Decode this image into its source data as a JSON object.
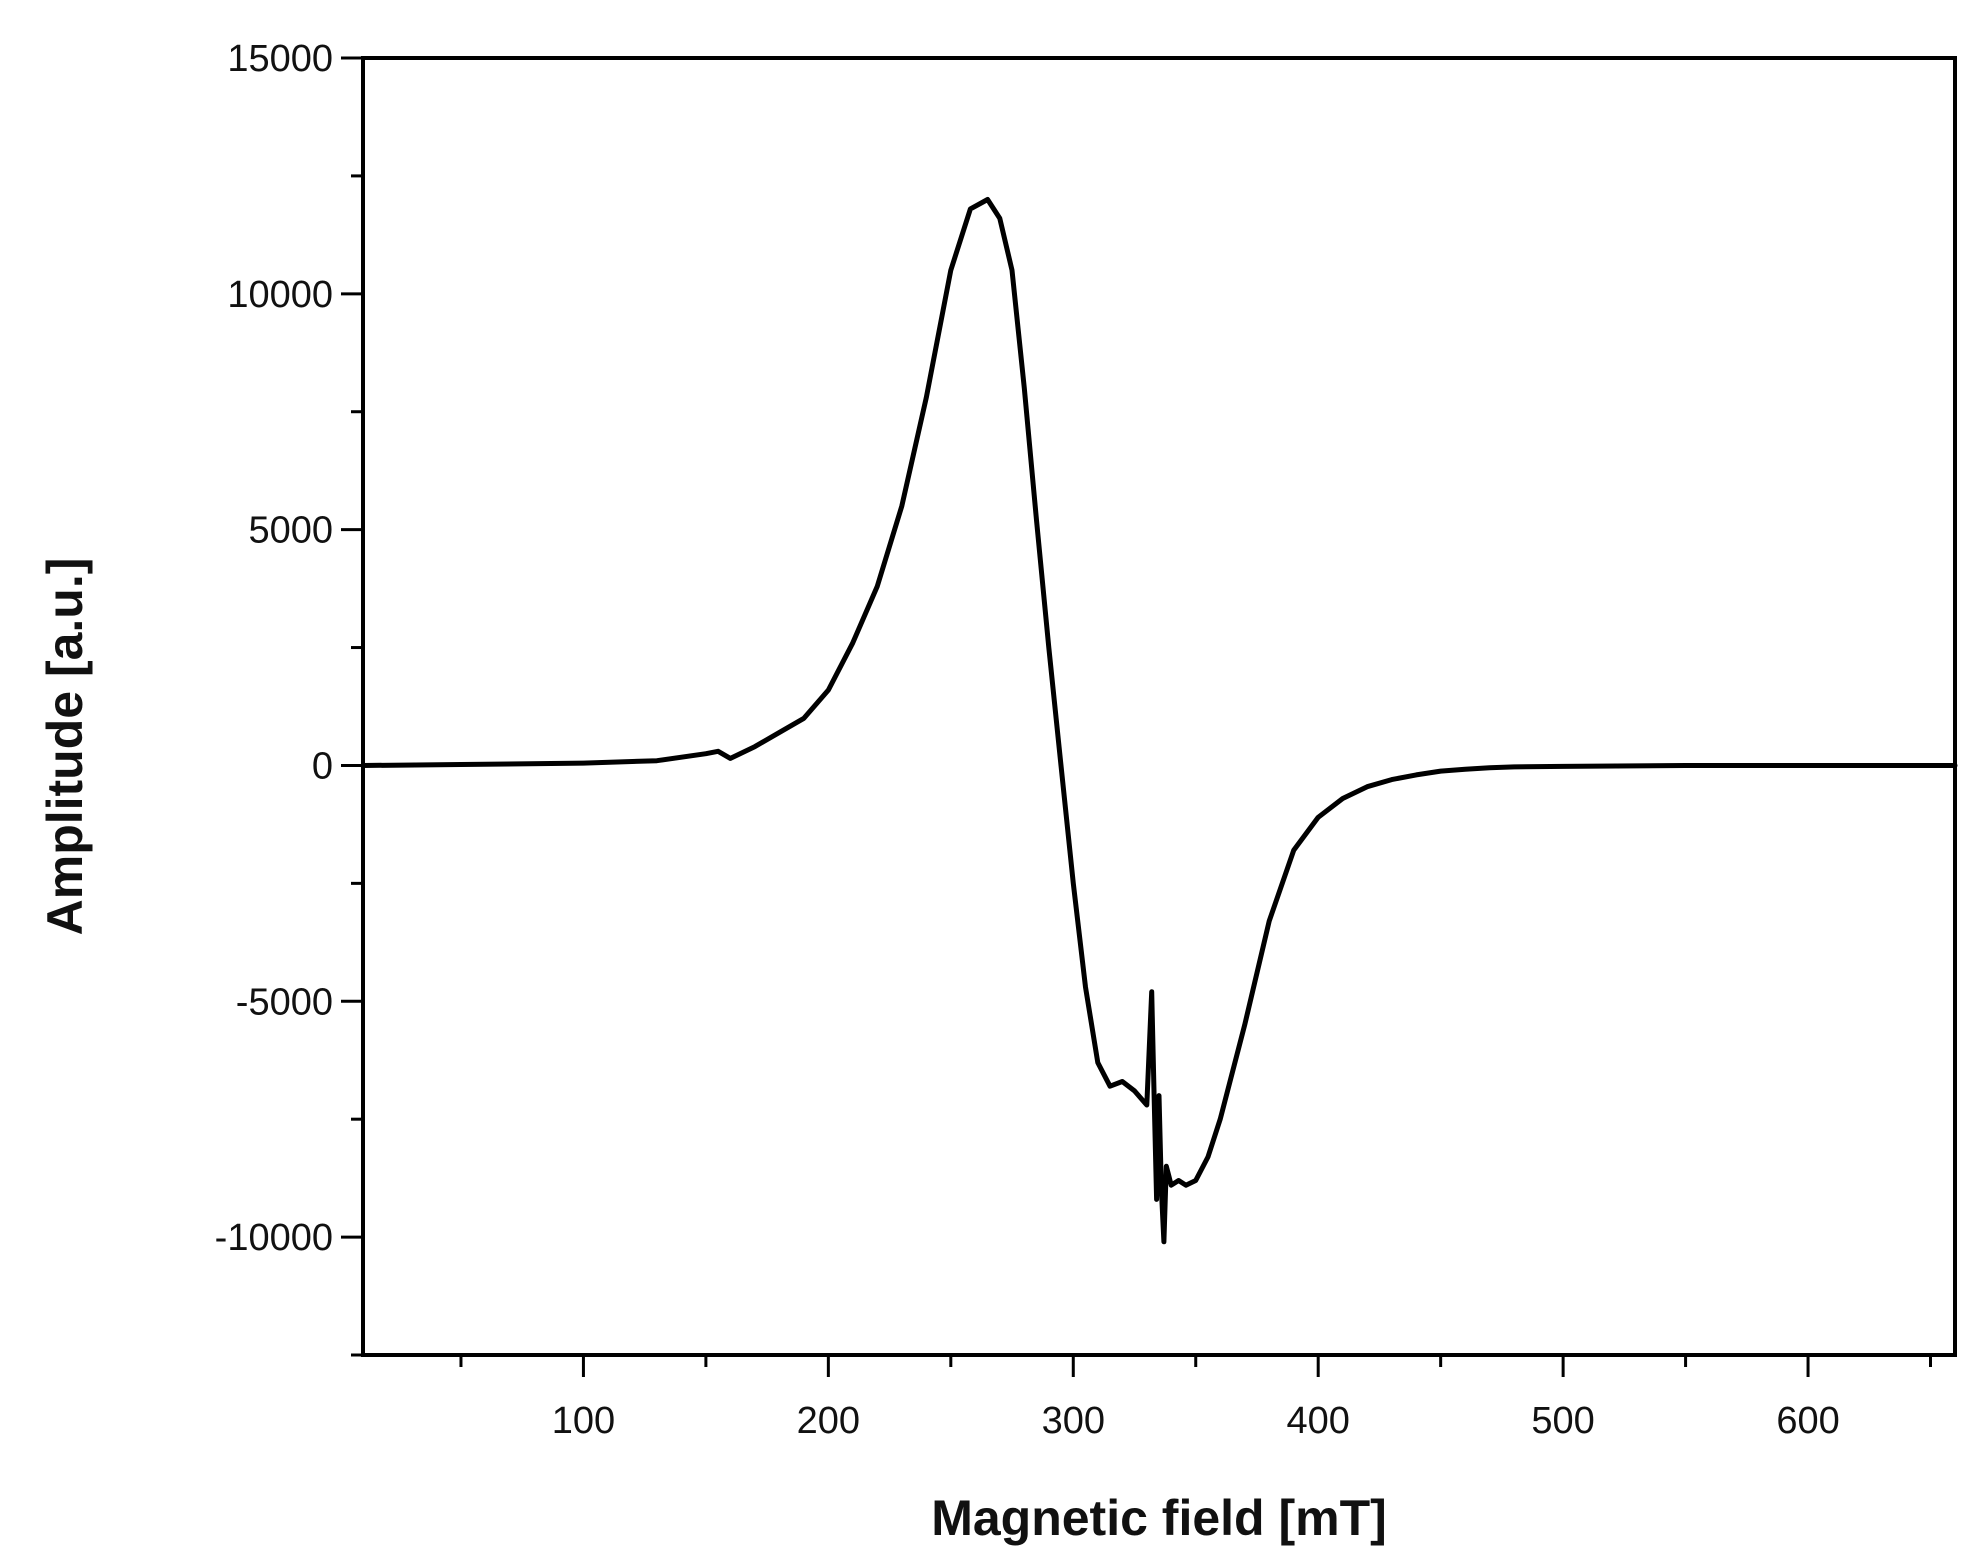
{
  "chart_data": {
    "type": "line",
    "title": "",
    "xlabel": "Magnetic field [mT]",
    "ylabel": "Amplitude [a.u.]",
    "xlim": [
      10,
      660
    ],
    "ylim": [
      -12500,
      15000
    ],
    "xticks": [
      {
        "value": 100,
        "label": "100"
      },
      {
        "value": 200,
        "label": "200"
      },
      {
        "value": 300,
        "label": "300"
      },
      {
        "value": 400,
        "label": "400"
      },
      {
        "value": 500,
        "label": "500"
      },
      {
        "value": 600,
        "label": "600"
      }
    ],
    "xminor": [
      50,
      150,
      250,
      350,
      450,
      550,
      650
    ],
    "yticks": [
      {
        "value": 15000,
        "label": "15000"
      },
      {
        "value": 10000,
        "label": "10000"
      },
      {
        "value": 5000,
        "label": "5000"
      },
      {
        "value": 0,
        "label": "0"
      },
      {
        "value": -5000,
        "label": "-5000"
      },
      {
        "value": -10000,
        "label": "-10000"
      }
    ],
    "yminor": [
      12500,
      7500,
      2500,
      -2500,
      -7500,
      -12500
    ],
    "grid": false,
    "legend": "none",
    "line_color": "#000000",
    "series": [
      {
        "x": [
          10,
          50,
          100,
          130,
          150,
          155,
          160,
          170,
          180,
          190,
          200,
          210,
          220,
          230,
          240,
          250,
          258,
          265,
          270,
          275,
          280,
          285,
          290,
          295,
          300,
          305,
          310,
          315,
          320,
          325,
          330,
          332,
          333,
          334,
          335,
          336,
          337,
          338,
          339,
          340,
          343,
          346,
          350,
          355,
          360,
          370,
          380,
          390,
          400,
          410,
          420,
          430,
          440,
          450,
          460,
          470,
          480,
          500,
          550,
          600,
          660
        ],
        "y": [
          0,
          20,
          50,
          100,
          250,
          300,
          150,
          400,
          700,
          1000,
          1600,
          2600,
          3800,
          5500,
          7800,
          10500,
          11800,
          12000,
          11600,
          10500,
          8000,
          5200,
          2500,
          0,
          -2500,
          -4700,
          -6300,
          -6800,
          -6700,
          -6900,
          -7200,
          -4800,
          -7000,
          -9200,
          -7000,
          -9000,
          -10100,
          -8500,
          -8700,
          -8900,
          -8800,
          -8900,
          -8800,
          -8300,
          -7500,
          -5500,
          -3300,
          -1800,
          -1100,
          -700,
          -450,
          -300,
          -200,
          -120,
          -80,
          -50,
          -30,
          -20,
          0,
          0,
          0
        ]
      }
    ]
  }
}
